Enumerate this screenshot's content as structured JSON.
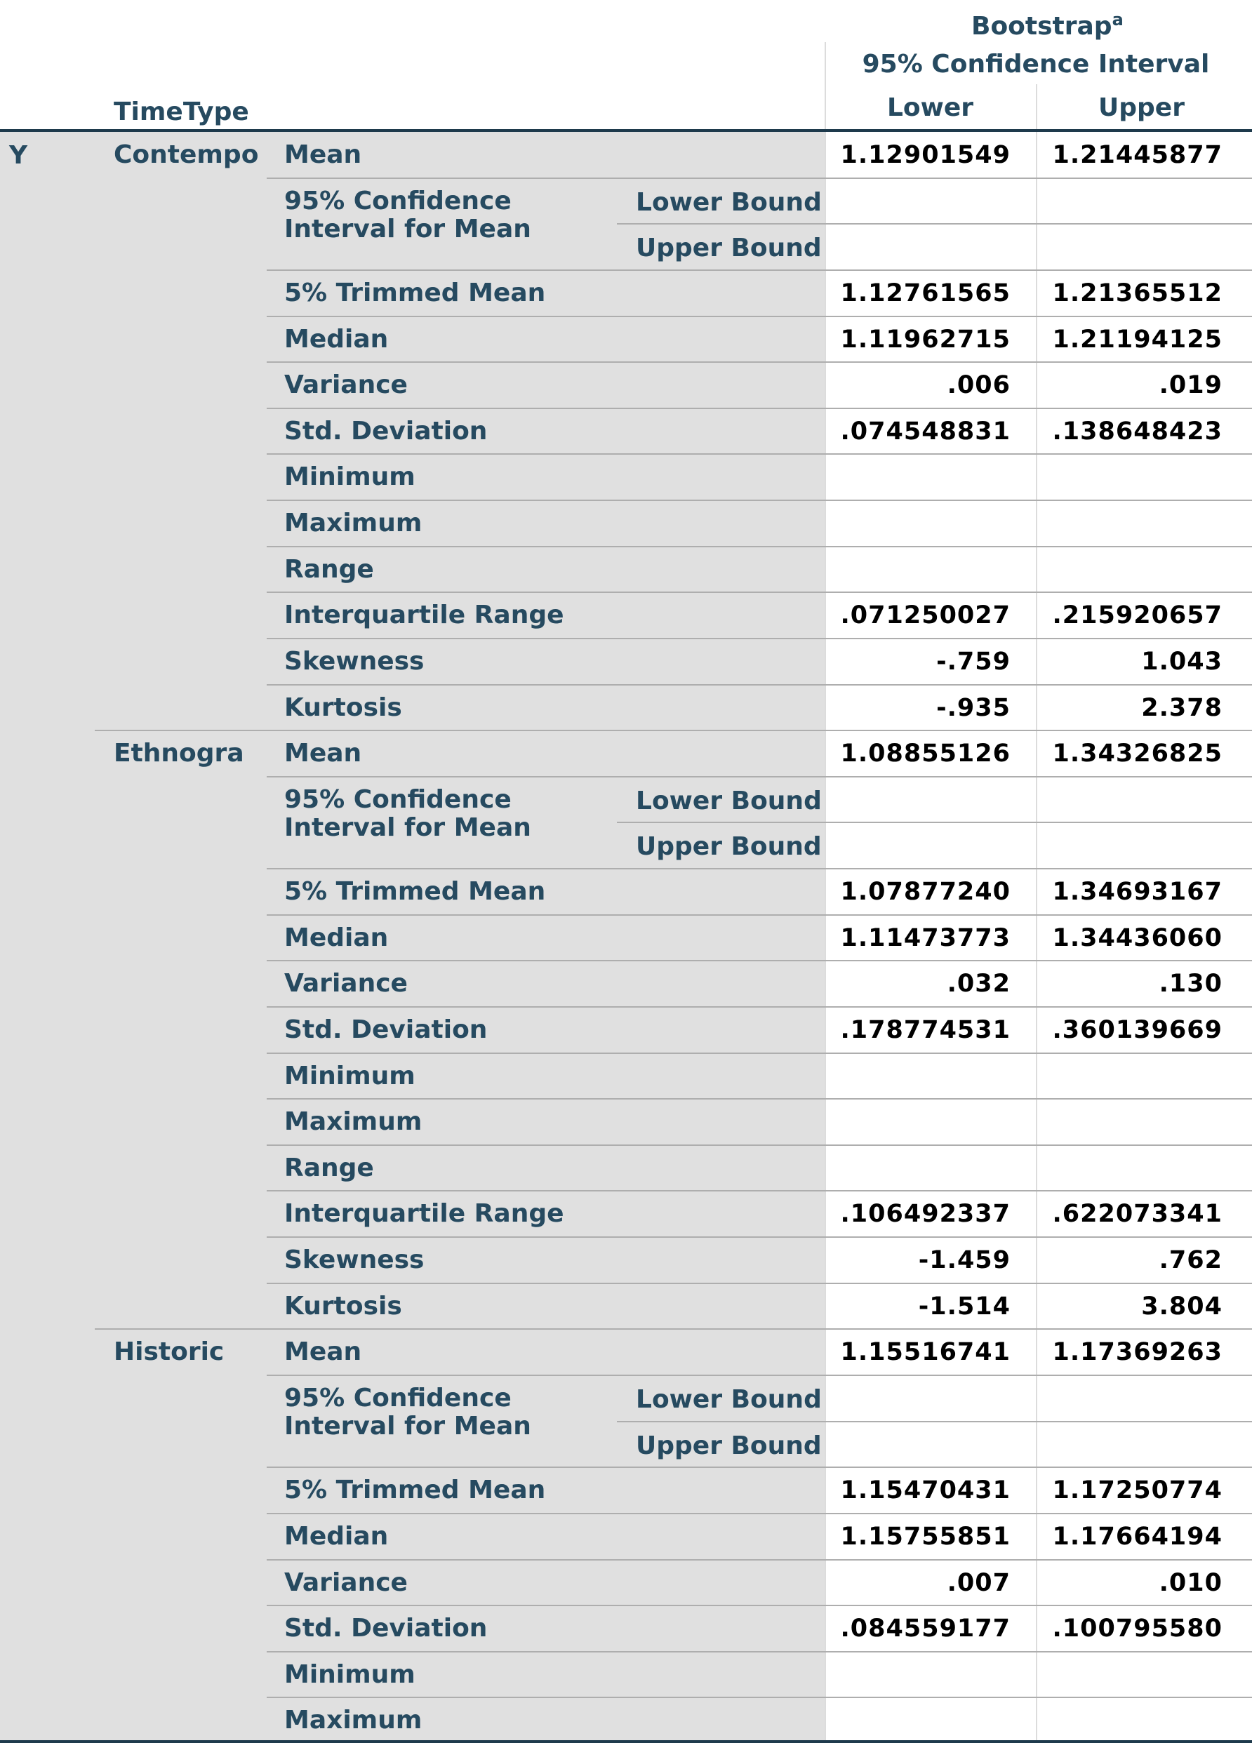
{
  "header": {
    "bootstrap": "Bootstrap",
    "footnote_mark": "a",
    "ci": "95% Confidence Interval",
    "lower": "Lower",
    "upper": "Upper",
    "time_type": "TimeType"
  },
  "variable": "Y",
  "groups": [
    {
      "label": "Contempo",
      "rows": [
        {
          "stat": "Mean",
          "lower": "1.12901549",
          "upper": "1.21445877"
        },
        {
          "stat": "95% Confidence Interval for Mean",
          "bounds": [
            "Lower Bound",
            "Upper Bound"
          ]
        },
        {
          "stat": "5% Trimmed Mean",
          "lower": "1.12761565",
          "upper": "1.21365512"
        },
        {
          "stat": "Median",
          "lower": "1.11962715",
          "upper": "1.21194125"
        },
        {
          "stat": "Variance",
          "lower": ".006",
          "upper": ".019"
        },
        {
          "stat": "Std. Deviation",
          "lower": ".074548831",
          "upper": ".138648423"
        },
        {
          "stat": "Minimum"
        },
        {
          "stat": "Maximum"
        },
        {
          "stat": "Range"
        },
        {
          "stat": "Interquartile Range",
          "lower": ".071250027",
          "upper": ".215920657"
        },
        {
          "stat": "Skewness",
          "lower": "-.759",
          "upper": "1.043"
        },
        {
          "stat": "Kurtosis",
          "lower": "-.935",
          "upper": "2.378"
        }
      ]
    },
    {
      "label": "Ethnogra",
      "rows": [
        {
          "stat": "Mean",
          "lower": "1.08855126",
          "upper": "1.34326825"
        },
        {
          "stat": "95% Confidence Interval for Mean",
          "bounds": [
            "Lower Bound",
            "Upper Bound"
          ]
        },
        {
          "stat": "5% Trimmed Mean",
          "lower": "1.07877240",
          "upper": "1.34693167"
        },
        {
          "stat": "Median",
          "lower": "1.11473773",
          "upper": "1.34436060"
        },
        {
          "stat": "Variance",
          "lower": ".032",
          "upper": ".130"
        },
        {
          "stat": "Std. Deviation",
          "lower": ".178774531",
          "upper": ".360139669"
        },
        {
          "stat": "Minimum"
        },
        {
          "stat": "Maximum"
        },
        {
          "stat": "Range"
        },
        {
          "stat": "Interquartile Range",
          "lower": ".106492337",
          "upper": ".622073341"
        },
        {
          "stat": "Skewness",
          "lower": "-1.459",
          "upper": ".762"
        },
        {
          "stat": "Kurtosis",
          "lower": "-1.514",
          "upper": "3.804"
        }
      ]
    },
    {
      "label": "Historic",
      "rows": [
        {
          "stat": "Mean",
          "lower": "1.15516741",
          "upper": "1.17369263"
        },
        {
          "stat": "95% Confidence Interval for Mean",
          "bounds": [
            "Lower Bound",
            "Upper Bound"
          ]
        },
        {
          "stat": "5% Trimmed Mean",
          "lower": "1.15470431",
          "upper": "1.17250774"
        },
        {
          "stat": "Median",
          "lower": "1.15755851",
          "upper": "1.17664194"
        },
        {
          "stat": "Variance",
          "lower": ".007",
          "upper": ".010"
        },
        {
          "stat": "Std. Deviation",
          "lower": ".084559177",
          "upper": ".100795580"
        },
        {
          "stat": "Minimum"
        },
        {
          "stat": "Maximum"
        }
      ]
    }
  ]
}
